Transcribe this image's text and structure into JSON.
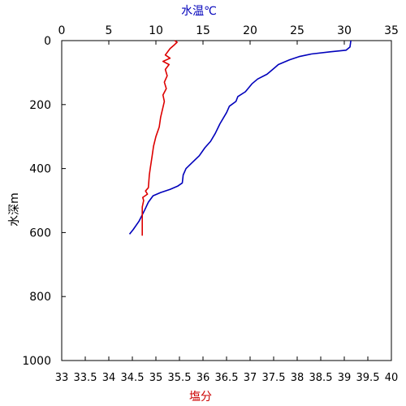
{
  "colors": {
    "background": "#ffffff",
    "axis": "#000000",
    "temperature": "#0000bb",
    "salinity": "#dd0000",
    "top_title": "#0000bb",
    "bottom_title": "#cc0000"
  },
  "chart_data": {
    "type": "line",
    "grid": false,
    "title": "",
    "y_axis": {
      "label": "水深m",
      "range": [
        0,
        1000
      ],
      "inverted": true,
      "ticks": [
        0,
        200,
        400,
        600,
        800,
        1000
      ]
    },
    "x_top": {
      "label": "水温℃",
      "range": [
        0,
        35
      ],
      "ticks": [
        0,
        5,
        10,
        15,
        20,
        25,
        30,
        35
      ]
    },
    "x_bottom": {
      "label": "塩分",
      "range": [
        33,
        40
      ],
      "ticks": [
        33,
        33.5,
        34,
        34.5,
        35,
        35.5,
        36,
        36.5,
        37,
        37.5,
        38,
        38.5,
        39,
        39.5,
        40
      ]
    },
    "series": [
      {
        "quantity": "temperature",
        "axis": "x_top",
        "points": [
          [
            30.7,
            0
          ],
          [
            30.6,
            20
          ],
          [
            30.2,
            30
          ],
          [
            28.5,
            35
          ],
          [
            26.5,
            42
          ],
          [
            25.2,
            50
          ],
          [
            24.2,
            60
          ],
          [
            23.0,
            75
          ],
          [
            22.6,
            85
          ],
          [
            21.8,
            105
          ],
          [
            20.8,
            120
          ],
          [
            20.2,
            135
          ],
          [
            19.5,
            160
          ],
          [
            18.7,
            175
          ],
          [
            18.5,
            190
          ],
          [
            17.8,
            205
          ],
          [
            17.5,
            225
          ],
          [
            16.8,
            260
          ],
          [
            16.3,
            290
          ],
          [
            15.8,
            315
          ],
          [
            15.2,
            335
          ],
          [
            14.6,
            360
          ],
          [
            13.9,
            380
          ],
          [
            13.2,
            400
          ],
          [
            12.9,
            420
          ],
          [
            12.8,
            445
          ],
          [
            12.3,
            455
          ],
          [
            11.5,
            465
          ],
          [
            10.5,
            475
          ],
          [
            9.7,
            485
          ],
          [
            9.2,
            505
          ],
          [
            8.8,
            530
          ],
          [
            8.2,
            565
          ],
          [
            7.6,
            590
          ],
          [
            7.2,
            605
          ]
        ]
      },
      {
        "quantity": "salinity",
        "axis": "x_bottom",
        "points": [
          [
            35.4,
            0
          ],
          [
            35.45,
            5
          ],
          [
            35.38,
            15
          ],
          [
            35.3,
            25
          ],
          [
            35.25,
            35
          ],
          [
            35.2,
            45
          ],
          [
            35.3,
            55
          ],
          [
            35.15,
            65
          ],
          [
            35.28,
            75
          ],
          [
            35.2,
            90
          ],
          [
            35.24,
            110
          ],
          [
            35.18,
            130
          ],
          [
            35.22,
            150
          ],
          [
            35.15,
            170
          ],
          [
            35.18,
            190
          ],
          [
            35.1,
            240
          ],
          [
            35.07,
            270
          ],
          [
            35.0,
            300
          ],
          [
            34.95,
            330
          ],
          [
            34.92,
            360
          ],
          [
            34.9,
            380
          ],
          [
            34.88,
            400
          ],
          [
            34.86,
            420
          ],
          [
            34.85,
            440
          ],
          [
            34.84,
            460
          ],
          [
            34.78,
            470
          ],
          [
            34.82,
            480
          ],
          [
            34.72,
            490
          ],
          [
            34.74,
            500
          ],
          [
            34.71,
            520
          ],
          [
            34.71,
            610
          ]
        ]
      }
    ]
  }
}
